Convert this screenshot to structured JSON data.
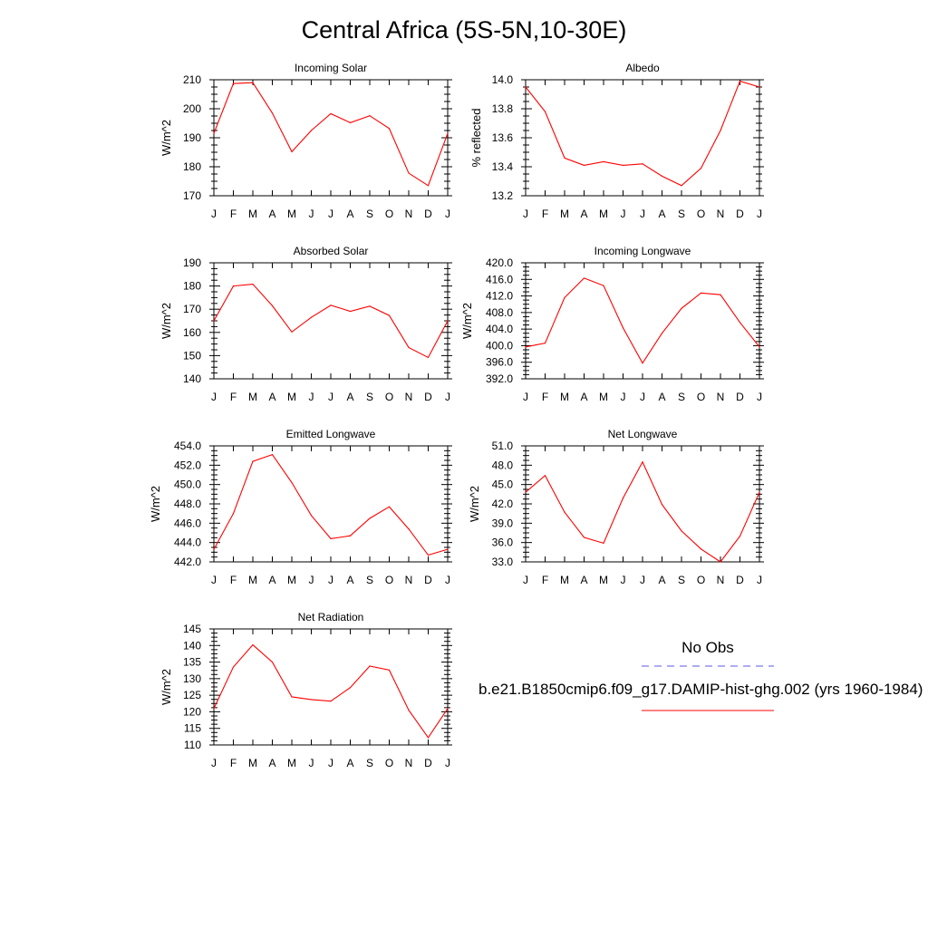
{
  "page_title": "Central Africa (5S-5N,10-30E)",
  "legend": {
    "obs_label": "No Obs",
    "obs_color": "#5a5ae6",
    "model_label": "b.e21.B1850cmip6.f09_g17.DAMIP-hist-ghg.002 (yrs 1960-1984)",
    "model_color": "#ff0000"
  },
  "chart_data": [
    {
      "type": "line",
      "title": "Incoming Solar",
      "ylabel": "W/m^2",
      "x": [
        "J",
        "F",
        "M",
        "A",
        "M",
        "J",
        "J",
        "A",
        "S",
        "O",
        "N",
        "D",
        "J"
      ],
      "ylim": [
        170,
        210
      ],
      "yticks": [
        "170",
        "180",
        "190",
        "200",
        "210"
      ],
      "grid": false,
      "series": [
        {
          "values": [
            191.5,
            208.7,
            209.0,
            198.5,
            185.2,
            192.5,
            198.3,
            195.2,
            197.6,
            193.2,
            177.8,
            173.5,
            191.5
          ],
          "color": "#ff0000"
        }
      ]
    },
    {
      "type": "line",
      "title": "Albedo",
      "ylabel": "% reflected",
      "x": [
        "J",
        "F",
        "M",
        "A",
        "M",
        "J",
        "J",
        "A",
        "S",
        "O",
        "N",
        "D",
        "J"
      ],
      "ylim": [
        13.2,
        14.0
      ],
      "yticks": [
        "13.2",
        "13.4",
        "13.6",
        "13.8",
        "14.0"
      ],
      "grid": false,
      "series": [
        {
          "values": [
            13.95,
            13.78,
            13.46,
            13.41,
            13.435,
            13.41,
            13.42,
            13.335,
            13.27,
            13.39,
            13.65,
            13.99,
            13.95
          ],
          "color": "#ff0000"
        }
      ]
    },
    {
      "type": "line",
      "title": "Absorbed Solar",
      "ylabel": "W/m^2",
      "x": [
        "J",
        "F",
        "M",
        "A",
        "M",
        "J",
        "J",
        "A",
        "S",
        "O",
        "N",
        "D",
        "J"
      ],
      "ylim": [
        140,
        190
      ],
      "yticks": [
        "140",
        "150",
        "160",
        "170",
        "180",
        "190"
      ],
      "grid": false,
      "series": [
        {
          "values": [
            165.0,
            180.0,
            180.8,
            171.5,
            160.2,
            166.5,
            171.7,
            169.1,
            171.3,
            167.3,
            153.5,
            149.2,
            165.0
          ],
          "color": "#ff0000"
        }
      ]
    },
    {
      "type": "line",
      "title": "Incoming Longwave",
      "ylabel": "W/m^2",
      "x": [
        "J",
        "F",
        "M",
        "A",
        "M",
        "J",
        "J",
        "A",
        "S",
        "O",
        "N",
        "D",
        "J"
      ],
      "ylim": [
        392.0,
        420.0
      ],
      "yticks": [
        "392.0",
        "396.0",
        "400.0",
        "404.0",
        "408.0",
        "412.0",
        "416.0",
        "420.0"
      ],
      "grid": false,
      "series": [
        {
          "values": [
            399.7,
            400.6,
            411.6,
            416.3,
            414.5,
            404.3,
            395.8,
            403.0,
            409.0,
            412.7,
            412.3,
            405.6,
            399.7
          ],
          "color": "#ff0000"
        }
      ]
    },
    {
      "type": "line",
      "title": "Emitted Longwave",
      "ylabel": "W/m^2",
      "x": [
        "J",
        "F",
        "M",
        "A",
        "M",
        "J",
        "J",
        "A",
        "S",
        "O",
        "N",
        "D",
        "J"
      ],
      "ylim": [
        442.0,
        454.0
      ],
      "yticks": [
        "442.0",
        "444.0",
        "446.0",
        "448.0",
        "450.0",
        "452.0",
        "454.0"
      ],
      "grid": false,
      "series": [
        {
          "values": [
            443.3,
            447.0,
            452.4,
            453.1,
            450.2,
            446.8,
            444.4,
            444.7,
            446.5,
            447.7,
            445.4,
            442.7,
            443.3
          ],
          "color": "#ff0000"
        }
      ]
    },
    {
      "type": "line",
      "title": "Net Longwave",
      "ylabel": "W/m^2",
      "x": [
        "J",
        "F",
        "M",
        "A",
        "M",
        "J",
        "J",
        "A",
        "S",
        "O",
        "N",
        "D",
        "J"
      ],
      "ylim": [
        33.0,
        51.0
      ],
      "yticks": [
        "33.0",
        "36.0",
        "39.0",
        "42.0",
        "45.0",
        "48.0",
        "51.0"
      ],
      "grid": false,
      "series": [
        {
          "values": [
            43.8,
            46.4,
            40.7,
            36.8,
            35.9,
            42.9,
            48.5,
            41.9,
            37.8,
            35.0,
            33.0,
            37.0,
            43.8
          ],
          "color": "#ff0000"
        }
      ]
    },
    {
      "type": "line",
      "title": "Net Radiation",
      "ylabel": "W/m^2",
      "x": [
        "J",
        "F",
        "M",
        "A",
        "M",
        "J",
        "J",
        "A",
        "S",
        "O",
        "N",
        "D",
        "J"
      ],
      "ylim": [
        110,
        145
      ],
      "yticks": [
        "110",
        "115",
        "120",
        "125",
        "130",
        "135",
        "140",
        "145"
      ],
      "grid": false,
      "series": [
        {
          "values": [
            121.0,
            133.5,
            140.2,
            135.0,
            124.5,
            123.7,
            123.2,
            127.3,
            133.8,
            132.6,
            120.5,
            112.2,
            121.0
          ],
          "color": "#ff0000"
        }
      ]
    }
  ]
}
